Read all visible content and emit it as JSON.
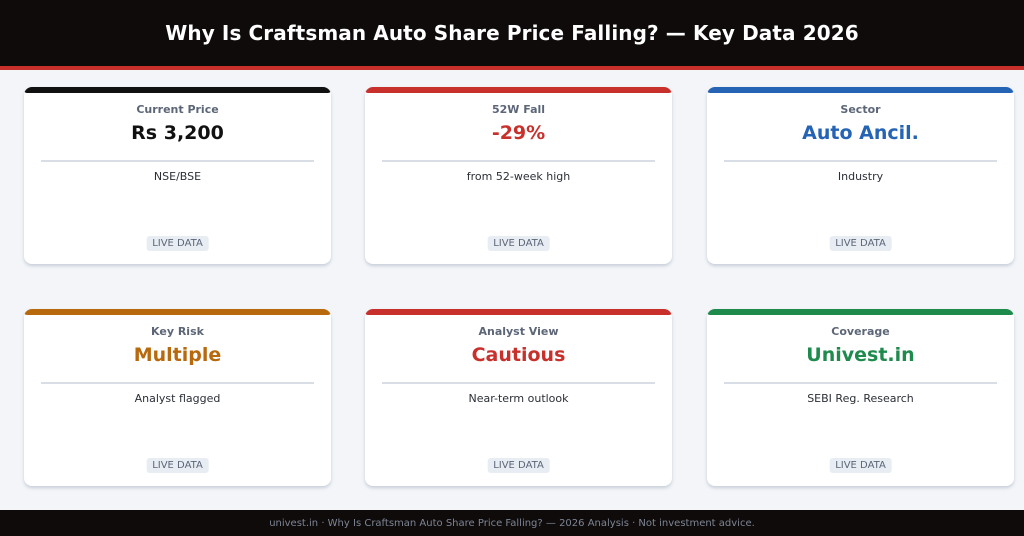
{
  "header": {
    "title": "Why Is Craftsman Auto Share Price Falling? — Key Data 2026"
  },
  "colors": {
    "black": "#111111",
    "red": "#c8302c",
    "blue": "#2563b5",
    "amber": "#b8690d",
    "green": "#1e8a4c",
    "header_bg": "#0f0b0b",
    "accent_rule": "#c8302c"
  },
  "cards": [
    {
      "label": "Current Price",
      "value": "Rs 3,200",
      "sub": "NSE/BSE",
      "badge": "LIVE DATA",
      "accent": "black"
    },
    {
      "label": "52W Fall",
      "value": "-29%",
      "sub": "from 52-week high",
      "badge": "LIVE DATA",
      "accent": "red"
    },
    {
      "label": "Sector",
      "value": "Auto Ancil.",
      "sub": "Industry",
      "badge": "LIVE DATA",
      "accent": "blue"
    },
    {
      "label": "Key Risk",
      "value": "Multiple",
      "sub": "Analyst flagged",
      "badge": "LIVE DATA",
      "accent": "amber"
    },
    {
      "label": "Analyst View",
      "value": "Cautious",
      "sub": "Near-term outlook",
      "badge": "LIVE DATA",
      "accent": "red"
    },
    {
      "label": "Coverage",
      "value": "Univest.in",
      "sub": "SEBI Reg. Research",
      "badge": "LIVE DATA",
      "accent": "green"
    }
  ],
  "footer": {
    "text": "univest.in  ·  Why Is Craftsman Auto Share Price Falling? — 2026 Analysis  ·  Not investment advice."
  }
}
